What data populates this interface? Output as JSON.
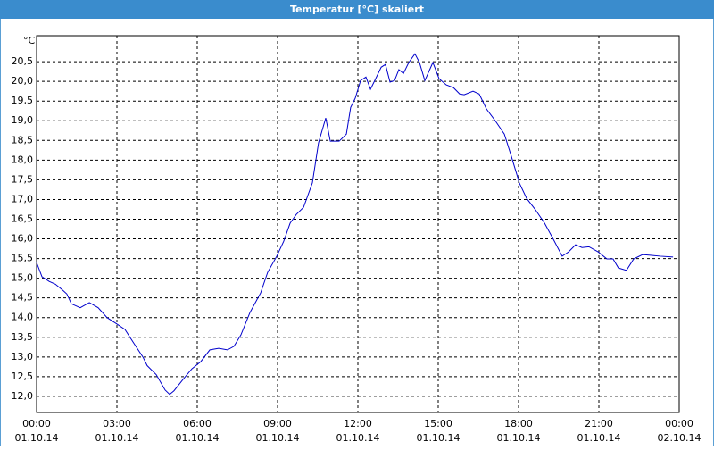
{
  "chart_data": {
    "type": "line",
    "title": "Temperatur [°C] skaliert",
    "y_unit": "°C",
    "x": [
      0,
      0.2,
      0.47,
      0.7,
      0.97,
      1.13,
      1.3,
      1.63,
      1.97,
      2.3,
      2.63,
      2.97,
      3.3,
      3.63,
      3.97,
      4.13,
      4.47,
      4.8,
      4.97,
      5.13,
      5.47,
      5.8,
      6.13,
      6.47,
      6.8,
      7.13,
      7.37,
      7.63,
      7.97,
      8.37,
      8.63,
      8.97,
      9.23,
      9.47,
      9.7,
      9.97,
      10.3,
      10.53,
      10.8,
      10.97,
      11.3,
      11.57,
      11.73,
      11.9,
      12.1,
      12.3,
      12.47,
      12.63,
      12.87,
      13.03,
      13.2,
      13.37,
      13.53,
      13.7,
      13.9,
      14.13,
      14.3,
      14.5,
      14.8,
      15.03,
      15.3,
      15.57,
      15.8,
      15.97,
      16.3,
      16.53,
      16.8,
      17.13,
      17.47,
      17.73,
      18.03,
      18.3,
      18.63,
      18.97,
      19.3,
      19.63,
      19.87,
      20.13,
      20.37,
      20.63,
      20.97,
      21.3,
      21.53,
      21.73,
      22.03,
      22.3,
      22.63,
      22.97,
      23.3,
      23.77
    ],
    "series": [
      {
        "name": "Temperatur",
        "color": "#0000cc",
        "values": [
          15.4,
          15.04,
          14.92,
          14.85,
          14.7,
          14.6,
          14.35,
          14.25,
          14.38,
          14.25,
          14.0,
          13.85,
          13.7,
          13.35,
          13.0,
          12.78,
          12.55,
          12.16,
          12.05,
          12.14,
          12.43,
          12.7,
          12.88,
          13.18,
          13.22,
          13.18,
          13.27,
          13.56,
          14.13,
          14.63,
          15.15,
          15.56,
          15.94,
          16.4,
          16.62,
          16.8,
          17.42,
          18.44,
          19.07,
          18.48,
          18.48,
          18.66,
          19.34,
          19.57,
          20.02,
          20.11,
          19.8,
          20.02,
          20.36,
          20.43,
          19.98,
          20.02,
          20.3,
          20.2,
          20.48,
          20.7,
          20.48,
          20.02,
          20.48,
          20.07,
          19.91,
          19.84,
          19.68,
          19.66,
          19.75,
          19.68,
          19.3,
          19.0,
          18.66,
          18.1,
          17.42,
          17.03,
          16.74,
          16.4,
          15.99,
          15.56,
          15.67,
          15.85,
          15.78,
          15.8,
          15.67,
          15.49,
          15.49,
          15.26,
          15.2,
          15.49,
          15.6,
          15.58,
          15.56,
          15.54
        ]
      }
    ],
    "xlim": [
      0,
      24
    ],
    "xticks": [
      {
        "value": 0,
        "label": "00:00",
        "date": "01.10.14"
      },
      {
        "value": 3,
        "label": "03:00",
        "date": "01.10.14"
      },
      {
        "value": 6,
        "label": "06:00",
        "date": "01.10.14"
      },
      {
        "value": 9,
        "label": "09:00",
        "date": "01.10.14"
      },
      {
        "value": 12,
        "label": "12:00",
        "date": "01.10.14"
      },
      {
        "value": 15,
        "label": "15:00",
        "date": "01.10.14"
      },
      {
        "value": 18,
        "label": "18:00",
        "date": "01.10.14"
      },
      {
        "value": 21,
        "label": "21:00",
        "date": "01.10.14"
      },
      {
        "value": 24,
        "label": "00:00",
        "date": "02.10.14"
      }
    ],
    "ylim": [
      11.59,
      21.16
    ],
    "yticks": [
      {
        "value": 12,
        "label": "12,0"
      },
      {
        "value": 12.5,
        "label": "12,5"
      },
      {
        "value": 13,
        "label": "13,0"
      },
      {
        "value": 13.5,
        "label": "13,5"
      },
      {
        "value": 14,
        "label": "14,0"
      },
      {
        "value": 14.5,
        "label": "14,5"
      },
      {
        "value": 15,
        "label": "15,0"
      },
      {
        "value": 15.5,
        "label": "15,5"
      },
      {
        "value": 16,
        "label": "16,0"
      },
      {
        "value": 16.5,
        "label": "16,5"
      },
      {
        "value": 17,
        "label": "17,0"
      },
      {
        "value": 17.5,
        "label": "17,5"
      },
      {
        "value": 18,
        "label": "18,0"
      },
      {
        "value": 18.5,
        "label": "18,5"
      },
      {
        "value": 19,
        "label": "19,0"
      },
      {
        "value": 19.5,
        "label": "19,5"
      },
      {
        "value": 20,
        "label": "20,0"
      },
      {
        "value": 20.5,
        "label": "20,5"
      }
    ],
    "grid": true
  }
}
